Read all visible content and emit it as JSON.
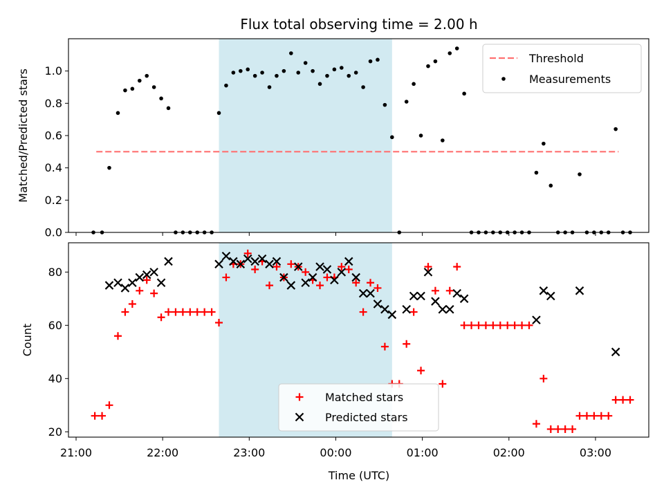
{
  "chart_data": {
    "title": "Flux total observing time = 2.00 h",
    "highlight": {
      "start": "22:39",
      "end": "00:39",
      "color": "#add8e6"
    },
    "xlabel": "Time (UTC)",
    "xticks": [
      "21:00",
      "22:00",
      "23:00",
      "00:00",
      "01:00",
      "02:00",
      "03:00"
    ],
    "panels": [
      {
        "type": "scatter",
        "ylabel": "Matched/Predicted stars",
        "ylim": [
          0,
          1.2
        ],
        "yticks": [
          "0.0",
          "0.2",
          "0.4",
          "0.6",
          "0.8",
          "1.0"
        ],
        "threshold": {
          "name": "Threshold",
          "value": 0.5,
          "color": "#ff7070",
          "start": "21:14",
          "end": "03:16"
        },
        "legend": {
          "placement": "upper right",
          "entries": [
            "Threshold",
            "Measurements"
          ]
        },
        "series": [
          {
            "name": "Measurements",
            "color": "#000000",
            "points": [
              [
                "21:12",
                0
              ],
              [
                "21:18",
                0
              ],
              [
                "21:23",
                0.4
              ],
              [
                "21:29",
                0.74
              ],
              [
                "21:34",
                0.88
              ],
              [
                "21:39",
                0.89
              ],
              [
                "21:44",
                0.94
              ],
              [
                "21:49",
                0.97
              ],
              [
                "21:54",
                0.9
              ],
              [
                "21:59",
                0.83
              ],
              [
                "22:04",
                0.77
              ],
              [
                "22:09",
                0
              ],
              [
                "22:14",
                0
              ],
              [
                "22:19",
                0
              ],
              [
                "22:24",
                0
              ],
              [
                "22:29",
                0
              ],
              [
                "22:34",
                0
              ],
              [
                "22:39",
                0.74
              ],
              [
                "22:44",
                0.91
              ],
              [
                "22:49",
                0.99
              ],
              [
                "22:54",
                1.0
              ],
              [
                "22:59",
                1.01
              ],
              [
                "23:04",
                0.97
              ],
              [
                "23:09",
                0.99
              ],
              [
                "23:14",
                0.9
              ],
              [
                "23:19",
                0.97
              ],
              [
                "23:24",
                1.0
              ],
              [
                "23:29",
                1.11
              ],
              [
                "23:34",
                0.99
              ],
              [
                "23:39",
                1.05
              ],
              [
                "23:44",
                1.0
              ],
              [
                "23:49",
                0.92
              ],
              [
                "23:54",
                0.97
              ],
              [
                "23:59",
                1.01
              ],
              [
                "00:04",
                1.02
              ],
              [
                "00:09",
                0.97
              ],
              [
                "00:14",
                0.99
              ],
              [
                "00:19",
                0.9
              ],
              [
                "00:24",
                1.06
              ],
              [
                "00:29",
                1.07
              ],
              [
                "00:34",
                0.79
              ],
              [
                "00:39",
                0.59
              ],
              [
                "00:44",
                0
              ],
              [
                "00:49",
                0.81
              ],
              [
                "00:54",
                0.92
              ],
              [
                "00:59",
                0.6
              ],
              [
                "01:04",
                1.03
              ],
              [
                "01:09",
                1.06
              ],
              [
                "01:14",
                0.57
              ],
              [
                "01:19",
                1.11
              ],
              [
                "01:24",
                1.14
              ],
              [
                "01:29",
                0.86
              ],
              [
                "01:34",
                0
              ],
              [
                "01:39",
                0
              ],
              [
                "01:44",
                0
              ],
              [
                "01:49",
                0
              ],
              [
                "01:54",
                0
              ],
              [
                "01:59",
                0
              ],
              [
                "02:04",
                0
              ],
              [
                "02:09",
                0
              ],
              [
                "02:14",
                0
              ],
              [
                "02:19",
                0.37
              ],
              [
                "02:24",
                0.55
              ],
              [
                "02:29",
                0.29
              ],
              [
                "02:34",
                0
              ],
              [
                "02:39",
                0
              ],
              [
                "02:44",
                0
              ],
              [
                "02:49",
                0.36
              ],
              [
                "02:54",
                0
              ],
              [
                "02:59",
                0
              ],
              [
                "03:04",
                0
              ],
              [
                "03:09",
                0
              ],
              [
                "03:14",
                0.64
              ],
              [
                "03:19",
                0
              ],
              [
                "03:24",
                0
              ]
            ]
          }
        ]
      },
      {
        "type": "scatter",
        "ylabel": "Count",
        "ylim": [
          18,
          91
        ],
        "yticks": [
          "20",
          "40",
          "60",
          "80"
        ],
        "legend": {
          "placement": "lower center",
          "entries": [
            "Matched stars",
            "Predicted stars"
          ]
        },
        "series": [
          {
            "name": "Matched stars",
            "color": "#ff0000",
            "marker": "plus",
            "points": [
              [
                "21:13",
                26
              ],
              [
                "21:18",
                26
              ],
              [
                "21:23",
                30
              ],
              [
                "21:29",
                56
              ],
              [
                "21:34",
                65
              ],
              [
                "21:39",
                68
              ],
              [
                "21:44",
                73
              ],
              [
                "21:49",
                77
              ],
              [
                "21:54",
                72
              ],
              [
                "21:59",
                63
              ],
              [
                "22:04",
                65
              ],
              [
                "22:09",
                65
              ],
              [
                "22:14",
                65
              ],
              [
                "22:19",
                65
              ],
              [
                "22:24",
                65
              ],
              [
                "22:29",
                65
              ],
              [
                "22:34",
                65
              ],
              [
                "22:39",
                61
              ],
              [
                "22:44",
                78
              ],
              [
                "22:49",
                83
              ],
              [
                "22:54",
                83
              ],
              [
                "22:59",
                87
              ],
              [
                "23:04",
                81
              ],
              [
                "23:09",
                84
              ],
              [
                "23:14",
                75
              ],
              [
                "23:19",
                82
              ],
              [
                "23:24",
                78
              ],
              [
                "23:29",
                83
              ],
              [
                "23:34",
                82
              ],
              [
                "23:39",
                80
              ],
              [
                "23:44",
                77
              ],
              [
                "23:49",
                75
              ],
              [
                "23:54",
                78
              ],
              [
                "23:59",
                78
              ],
              [
                "00:04",
                82
              ],
              [
                "00:09",
                81
              ],
              [
                "00:14",
                76
              ],
              [
                "00:19",
                65
              ],
              [
                "00:24",
                76
              ],
              [
                "00:29",
                74
              ],
              [
                "00:34",
                52
              ],
              [
                "00:39",
                38
              ],
              [
                "00:44",
                38
              ],
              [
                "00:49",
                53
              ],
              [
                "00:54",
                65
              ],
              [
                "00:59",
                43
              ],
              [
                "01:04",
                82
              ],
              [
                "01:09",
                73
              ],
              [
                "01:14",
                38
              ],
              [
                "01:19",
                73
              ],
              [
                "01:24",
                82
              ],
              [
                "01:29",
                60
              ],
              [
                "01:34",
                60
              ],
              [
                "01:39",
                60
              ],
              [
                "01:44",
                60
              ],
              [
                "01:49",
                60
              ],
              [
                "01:54",
                60
              ],
              [
                "01:59",
                60
              ],
              [
                "02:04",
                60
              ],
              [
                "02:09",
                60
              ],
              [
                "02:14",
                60
              ],
              [
                "02:19",
                23
              ],
              [
                "02:24",
                40
              ],
              [
                "02:29",
                21
              ],
              [
                "02:34",
                21
              ],
              [
                "02:39",
                21
              ],
              [
                "02:44",
                21
              ],
              [
                "02:49",
                26
              ],
              [
                "02:54",
                26
              ],
              [
                "02:59",
                26
              ],
              [
                "03:04",
                26
              ],
              [
                "03:09",
                26
              ],
              [
                "03:14",
                32
              ],
              [
                "03:19",
                32
              ],
              [
                "03:24",
                32
              ]
            ]
          },
          {
            "name": "Predicted stars",
            "color": "#000000",
            "marker": "x",
            "points": [
              [
                "21:23",
                75
              ],
              [
                "21:29",
                76
              ],
              [
                "21:34",
                74
              ],
              [
                "21:39",
                76
              ],
              [
                "21:44",
                78
              ],
              [
                "21:49",
                79
              ],
              [
                "21:54",
                80
              ],
              [
                "21:59",
                76
              ],
              [
                "22:04",
                84
              ],
              [
                "22:39",
                83
              ],
              [
                "22:44",
                86
              ],
              [
                "22:49",
                84
              ],
              [
                "22:54",
                83
              ],
              [
                "22:59",
                85
              ],
              [
                "23:04",
                84
              ],
              [
                "23:09",
                85
              ],
              [
                "23:14",
                83
              ],
              [
                "23:19",
                84
              ],
              [
                "23:24",
                78
              ],
              [
                "23:29",
                75
              ],
              [
                "23:34",
                82
              ],
              [
                "23:39",
                76
              ],
              [
                "23:44",
                78
              ],
              [
                "23:49",
                82
              ],
              [
                "23:54",
                81
              ],
              [
                "23:59",
                77
              ],
              [
                "00:04",
                80
              ],
              [
                "00:09",
                84
              ],
              [
                "00:14",
                78
              ],
              [
                "00:19",
                72
              ],
              [
                "00:24",
                72
              ],
              [
                "00:29",
                68
              ],
              [
                "00:34",
                66
              ],
              [
                "00:39",
                64
              ],
              [
                "00:49",
                66
              ],
              [
                "00:54",
                71
              ],
              [
                "00:59",
                71
              ],
              [
                "01:04",
                80
              ],
              [
                "01:09",
                69
              ],
              [
                "01:14",
                66
              ],
              [
                "01:19",
                66
              ],
              [
                "01:24",
                72
              ],
              [
                "01:29",
                70
              ],
              [
                "02:19",
                62
              ],
              [
                "02:24",
                73
              ],
              [
                "02:29",
                71
              ],
              [
                "02:49",
                73
              ],
              [
                "03:14",
                50
              ]
            ]
          }
        ]
      }
    ]
  }
}
